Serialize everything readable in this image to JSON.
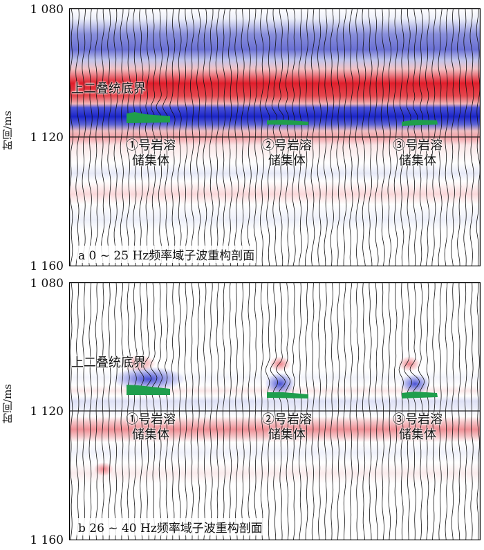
{
  "colors": {
    "red": "#e01e2b",
    "blue": "#1a24c8",
    "green": "#1f9e4c",
    "trace": "#111111"
  },
  "y_axis": {
    "title": "时间/ms",
    "ticks": [
      "1 080",
      "1 120",
      "1 160"
    ]
  },
  "panels": [
    {
      "id": "a",
      "caption": "a 0 ~ 25 Hz频率域子波重构剖面",
      "horizon_label": "上二叠统底界",
      "bodies": [
        {
          "marker": "①",
          "line1": "号岩溶",
          "line2": "储集体"
        },
        {
          "marker": "②",
          "line1": "号岩溶",
          "line2": "储集体"
        },
        {
          "marker": "③",
          "line1": "号岩溶",
          "line2": "储集体"
        }
      ]
    },
    {
      "id": "b",
      "caption": "b 26 ~ 40 Hz频率域子波重构剖面",
      "horizon_label": "上二叠统底界",
      "bodies": [
        {
          "marker": "①",
          "line1": "号岩溶",
          "line2": "储集体"
        },
        {
          "marker": "②",
          "line1": "号岩溶",
          "line2": "储集体"
        },
        {
          "marker": "③",
          "line1": "号岩溶",
          "line2": "储集体"
        }
      ]
    }
  ]
}
